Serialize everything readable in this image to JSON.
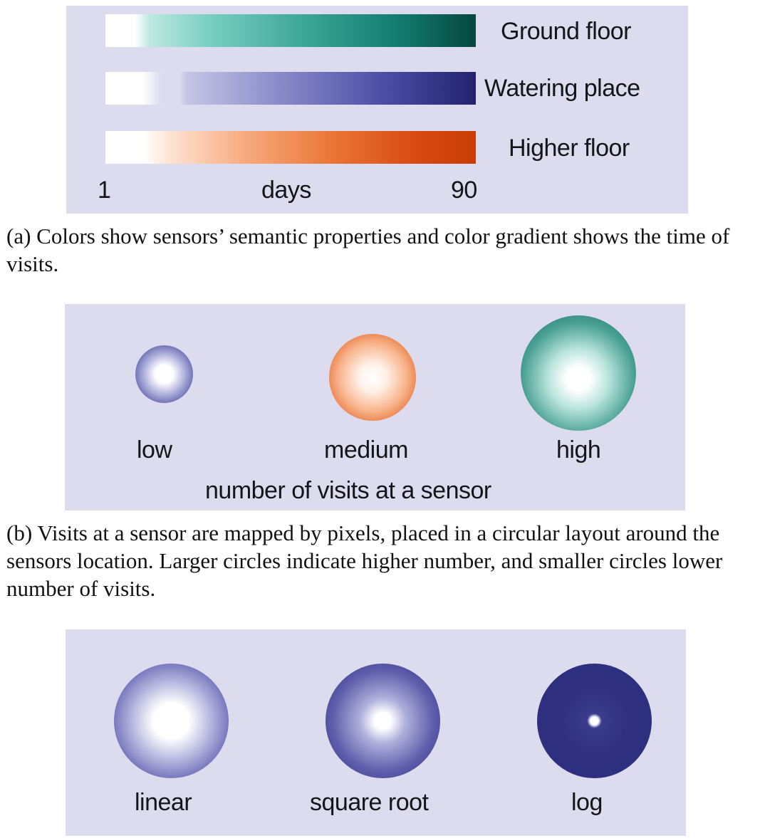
{
  "legend_a": {
    "series": [
      {
        "label": "Ground floor",
        "color": "#06463e"
      },
      {
        "label": "Watering place",
        "color": "#23226f"
      },
      {
        "label": "Higher floor",
        "color": "#c83e06"
      }
    ],
    "axis": {
      "start": "1",
      "label": "days",
      "end": "90"
    }
  },
  "caption_a": "(a) Colors show sensors’ semantic properties and color gradient shows the time of visits.",
  "legend_b": {
    "circles": [
      {
        "label": "low",
        "color": "#3a3c94"
      },
      {
        "label": "medium",
        "color": "#d8501a"
      },
      {
        "label": "high",
        "color": "#0d6d62"
      }
    ],
    "title": "number of visits at a sensor"
  },
  "caption_b": "(b) Visits at a sensor are mapped by pixels, placed in a circular layout around the sensors location. Larger circles indicate higher number, and smaller circles lower number of visits.",
  "legend_c": {
    "circles": [
      {
        "label": "linear",
        "color": "#2e2e82"
      },
      {
        "label": "square root",
        "color": "#2e2e82"
      },
      {
        "label": "log",
        "color": "#2e2e82"
      }
    ]
  }
}
